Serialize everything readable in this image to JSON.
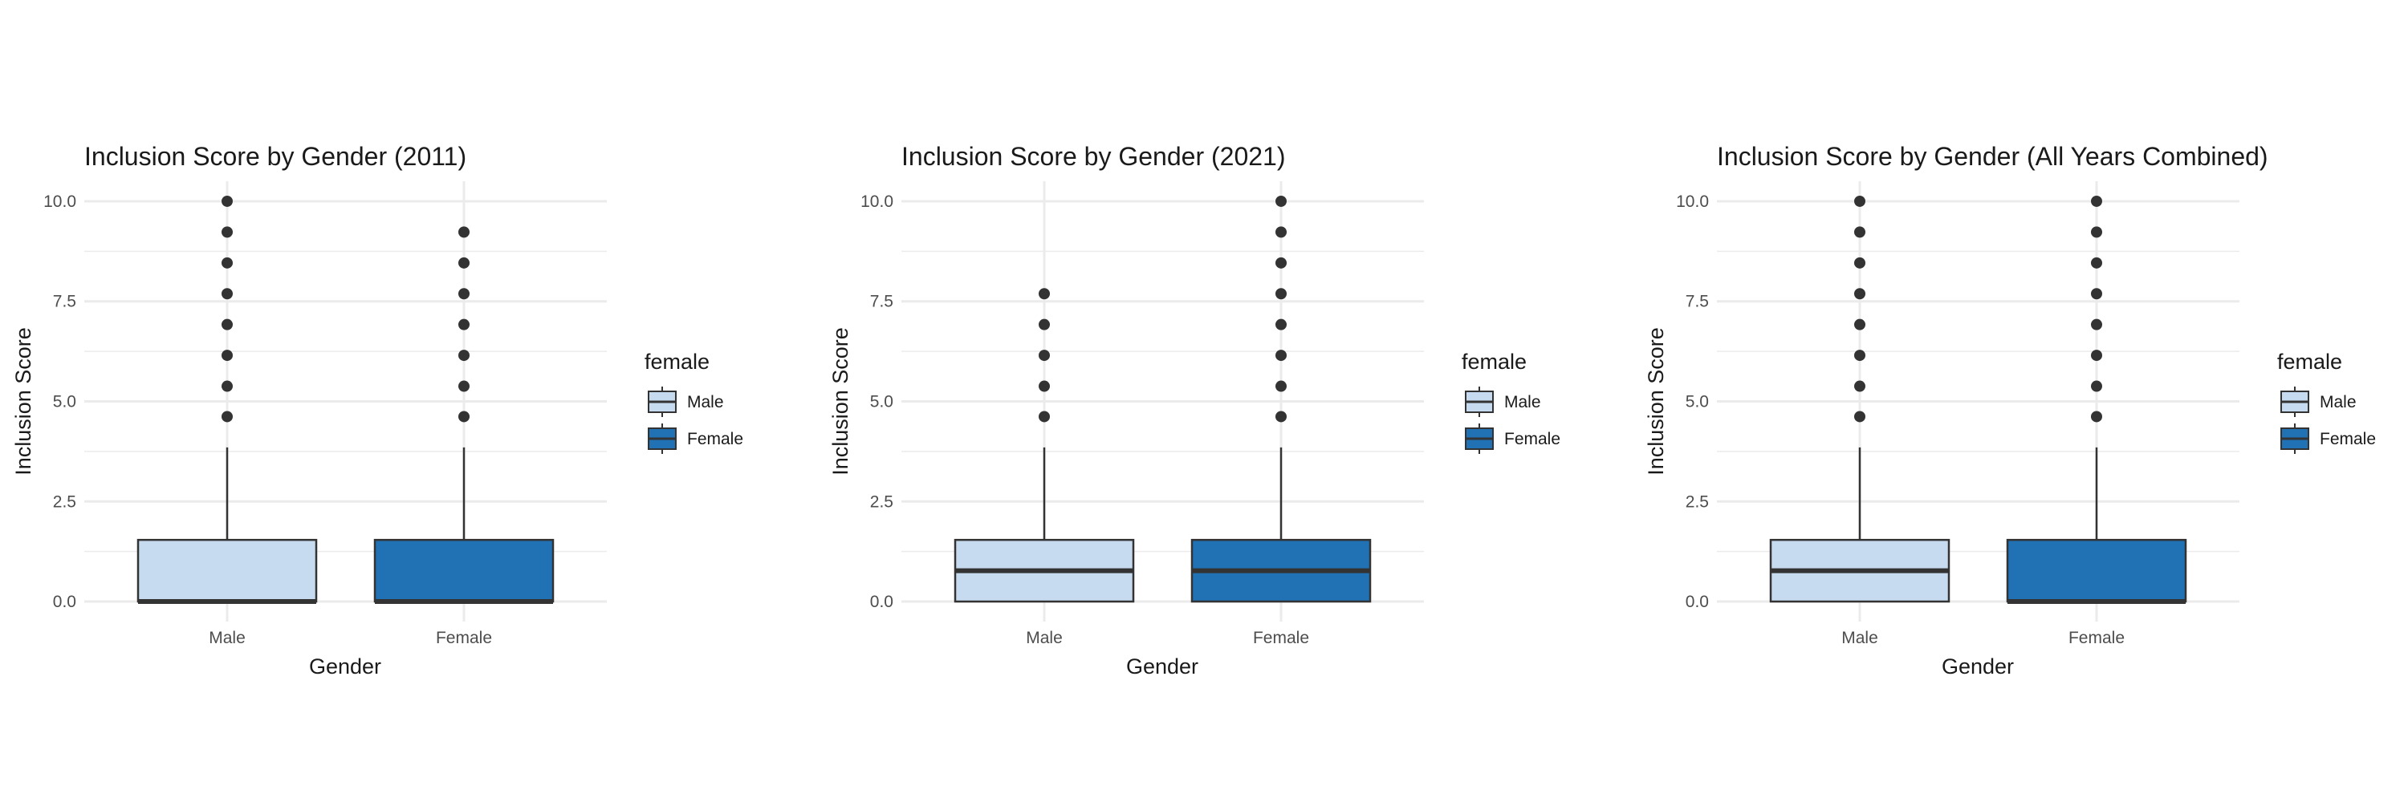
{
  "chart_data": [
    {
      "type": "box",
      "title": "Inclusion Score by Gender (2011)",
      "xlabel": "Gender",
      "ylabel": "Inclusion Score",
      "categories": [
        "Male",
        "Female"
      ],
      "ylim": [
        -0.5,
        10.5
      ],
      "yticks": [
        0,
        2.5,
        5,
        7.5,
        10
      ],
      "ytick_labels": [
        "0.0",
        "2.5",
        "5.0",
        "7.5",
        "10.0"
      ],
      "grid": true,
      "boxes": [
        {
          "category": "Male",
          "whisker_low": 0,
          "q1": 0,
          "median": 0,
          "q3": 1.54,
          "whisker_high": 3.85,
          "outliers": [
            4.62,
            5.38,
            6.15,
            6.92,
            7.69,
            8.46,
            9.23,
            10.0
          ]
        },
        {
          "category": "Female",
          "whisker_low": 0,
          "q1": 0,
          "median": 0,
          "q3": 1.54,
          "whisker_high": 3.85,
          "outliers": [
            4.62,
            5.38,
            6.15,
            6.92,
            7.69,
            8.46,
            9.23
          ]
        }
      ],
      "legend": {
        "title": "female",
        "placement": "right",
        "entries": [
          "Male",
          "Female"
        ]
      }
    },
    {
      "type": "box",
      "title": "Inclusion Score by Gender (2021)",
      "xlabel": "Gender",
      "ylabel": "Inclusion Score",
      "categories": [
        "Male",
        "Female"
      ],
      "ylim": [
        -0.5,
        10.5
      ],
      "yticks": [
        0,
        2.5,
        5,
        7.5,
        10
      ],
      "ytick_labels": [
        "0.0",
        "2.5",
        "5.0",
        "7.5",
        "10.0"
      ],
      "grid": true,
      "boxes": [
        {
          "category": "Male",
          "whisker_low": 0,
          "q1": 0,
          "median": 0.77,
          "q3": 1.54,
          "whisker_high": 3.85,
          "outliers": [
            4.62,
            5.38,
            6.15,
            6.92,
            7.69
          ]
        },
        {
          "category": "Female",
          "whisker_low": 0,
          "q1": 0,
          "median": 0.77,
          "q3": 1.54,
          "whisker_high": 3.85,
          "outliers": [
            4.62,
            5.38,
            6.15,
            6.92,
            7.69,
            8.46,
            9.23,
            10.0
          ]
        }
      ],
      "legend": {
        "title": "female",
        "placement": "right",
        "entries": [
          "Male",
          "Female"
        ]
      }
    },
    {
      "type": "box",
      "title": "Inclusion Score by Gender (All Years Combined)",
      "xlabel": "Gender",
      "ylabel": "Inclusion Score",
      "categories": [
        "Male",
        "Female"
      ],
      "ylim": [
        -0.5,
        10.5
      ],
      "yticks": [
        0,
        2.5,
        5,
        7.5,
        10
      ],
      "ytick_labels": [
        "0.0",
        "2.5",
        "5.0",
        "7.5",
        "10.0"
      ],
      "grid": true,
      "boxes": [
        {
          "category": "Male",
          "whisker_low": 0,
          "q1": 0,
          "median": 0.77,
          "q3": 1.54,
          "whisker_high": 3.85,
          "outliers": [
            4.62,
            5.38,
            6.15,
            6.92,
            7.69,
            8.46,
            9.23,
            10.0
          ]
        },
        {
          "category": "Female",
          "whisker_low": 0,
          "q1": 0,
          "median": 0,
          "q3": 1.54,
          "whisker_high": 3.85,
          "outliers": [
            4.62,
            5.38,
            6.15,
            6.92,
            7.69,
            8.46,
            9.23,
            10.0
          ]
        }
      ],
      "legend": {
        "title": "female",
        "placement": "right",
        "entries": [
          "Male",
          "Female"
        ]
      }
    }
  ],
  "colors": {
    "Male": "#c6dbef",
    "Female": "#2171b5",
    "outline": "#333333",
    "grid": "#ebebeb",
    "outlier": "#333333"
  }
}
